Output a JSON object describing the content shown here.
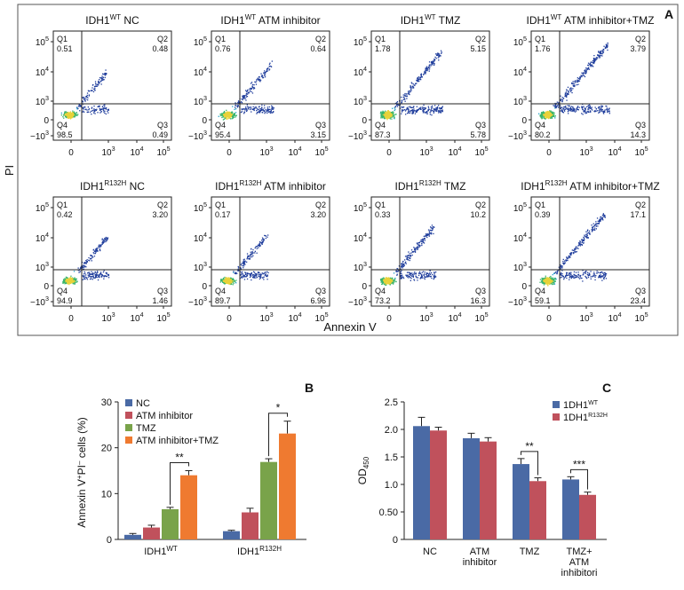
{
  "panel_letters": {
    "a": "A",
    "b": "B",
    "c": "C"
  },
  "chart_data": [
    {
      "type": "scatter",
      "panel": "A",
      "y_axis_label": "PI",
      "x_axis_label": "Annexin V",
      "axis_scale": "biexponential",
      "x_tick_labels": [
        "0",
        "10^3",
        "10^4",
        "10^5"
      ],
      "y_tick_labels": [
        "10^5",
        "10^4",
        "10^3",
        "0",
        "−10^3"
      ],
      "quadrant_labels": [
        "Q1",
        "Q2",
        "Q3",
        "Q4"
      ],
      "plots": [
        {
          "title_base": "IDH1",
          "title_sup": "WT",
          "title_rest": " NC",
          "q1": "0.51",
          "q2": "0.48",
          "q3": "0.49",
          "q4": "98.5",
          "density": 0.35
        },
        {
          "title_base": "IDH1",
          "title_sup": "WT",
          "title_rest": " ATM inhibitor",
          "q1": "0.76",
          "q2": "0.64",
          "q3": "3.15",
          "q4": "95.4",
          "density": 0.55
        },
        {
          "title_base": "IDH1",
          "title_sup": "WT",
          "title_rest": " TMZ",
          "q1": "1.78",
          "q2": "5.15",
          "q3": "5.78",
          "q4": "87.3",
          "density": 0.8
        },
        {
          "title_base": "IDH1",
          "title_sup": "WT",
          "title_rest": " ATM inhibitor+TMZ",
          "q1": "1.76",
          "q2": "3.79",
          "q3": "14.3",
          "q4": "80.2",
          "density": 1.0
        },
        {
          "title_base": "IDH1",
          "title_sup": "R132H",
          "title_rest": " NC",
          "q1": "0.42",
          "q2": "3.20",
          "q3": "1.46",
          "q4": "94.9",
          "density": 0.35
        },
        {
          "title_base": "IDH1",
          "title_sup": "R132H",
          "title_rest": " ATM inhibitor",
          "q1": "0.17",
          "q2": "3.20",
          "q3": "6.96",
          "q4": "89.7",
          "density": 0.4
        },
        {
          "title_base": "IDH1",
          "title_sup": "R132H",
          "title_rest": " TMZ",
          "q1": "0.33",
          "q2": "10.2",
          "q3": "16.3",
          "q4": "73.2",
          "density": 0.6
        },
        {
          "title_base": "IDH1",
          "title_sup": "R132H",
          "title_rest": " ATM inhibitor+TMZ",
          "q1": "0.39",
          "q2": "17.1",
          "q3": "23.4",
          "q4": "59.1",
          "density": 0.9
        }
      ]
    },
    {
      "type": "bar",
      "panel": "B",
      "ylabel_base": "Annexin V",
      "ylabel_sup1": "+",
      "ylabel_mid": "PI",
      "ylabel_sup2": "–",
      "ylabel_rest": " cells (%)",
      "ylim": [
        0,
        30
      ],
      "yticks": [
        "0",
        "10",
        "20",
        "30"
      ],
      "groups": [
        {
          "base": "IDH1",
          "sup": "WT"
        },
        {
          "base": "IDH1",
          "sup": "R132H"
        }
      ],
      "series": [
        {
          "name": "NC",
          "color": "#4a6aa5",
          "values": [
            1.0,
            1.8
          ],
          "errors": [
            0.3,
            0.2
          ]
        },
        {
          "name": "ATM inhibitor",
          "color": "#c0515c",
          "values": [
            2.6,
            5.9
          ],
          "errors": [
            0.5,
            0.9
          ]
        },
        {
          "name": "TMZ",
          "color": "#79a34a",
          "values": [
            6.6,
            16.9
          ],
          "errors": [
            0.4,
            0.7
          ]
        },
        {
          "name": "ATM inhibitor+TMZ",
          "color": "#ef7a30",
          "values": [
            14.0,
            23.1
          ],
          "errors": [
            1.0,
            2.7
          ]
        }
      ],
      "significance": [
        {
          "group": 0,
          "from": 2,
          "to": 3,
          "label": "**"
        },
        {
          "group": 1,
          "from": 2,
          "to": 3,
          "label": "*"
        }
      ]
    },
    {
      "type": "bar",
      "panel": "C",
      "ylabel_base": "OD",
      "ylabel_sub": "450",
      "ylim": [
        0,
        2.5
      ],
      "yticks": [
        "0",
        "0.50",
        "1.0",
        "1.5",
        "2.0",
        "2.5"
      ],
      "categories": [
        [
          "NC"
        ],
        [
          "ATM",
          "inhibitor"
        ],
        [
          "TMZ"
        ],
        [
          "TMZ+",
          "ATM",
          "inhibitori"
        ]
      ],
      "series": [
        {
          "name_base": "1DH1",
          "name_sup": "WT",
          "color": "#4a6aa5",
          "values": [
            2.06,
            1.84,
            1.37,
            1.09
          ],
          "errors": [
            0.16,
            0.09,
            0.1,
            0.05
          ]
        },
        {
          "name_base": "1DH1",
          "name_sup": "R132H",
          "color": "#c0515c",
          "values": [
            1.98,
            1.78,
            1.06,
            0.81
          ],
          "errors": [
            0.06,
            0.07,
            0.06,
            0.05
          ]
        }
      ],
      "significance": [
        {
          "category": 2,
          "label": "**"
        },
        {
          "category": 3,
          "label": "***"
        }
      ]
    }
  ]
}
